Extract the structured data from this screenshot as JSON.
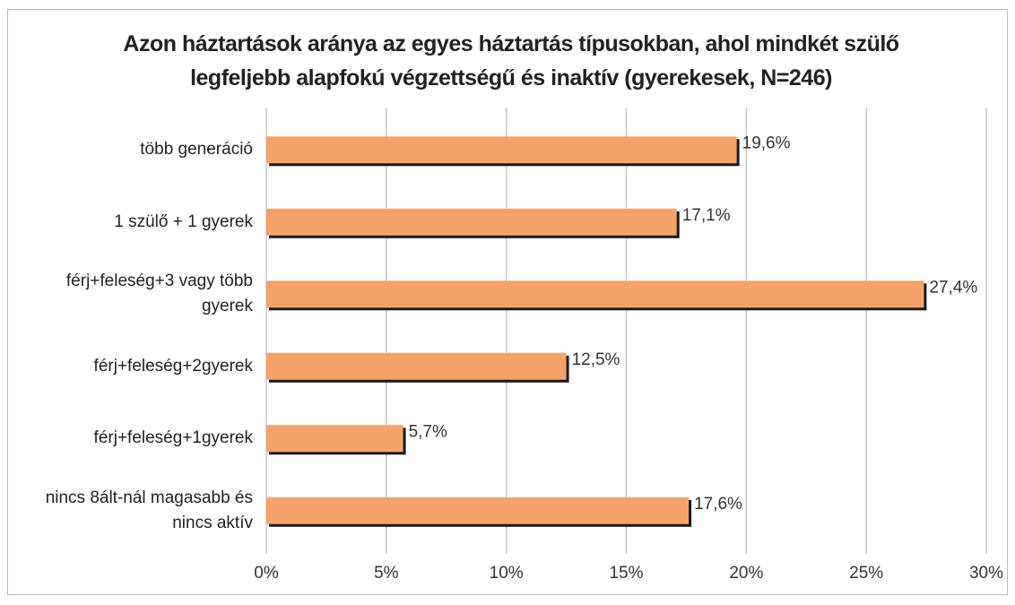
{
  "chart_data": {
    "type": "barh",
    "title": "Azon háztartások aránya az egyes háztartás típusokban, ahol mindkét szülő legfeljebb alapfokú végzettségű és inaktív (gyerekesek, N=246)",
    "categories": [
      "több generáció",
      "1 szülő + 1 gyerek",
      "férj+feleség+3 vagy több gyerek",
      "férj+feleség+2gyerek",
      "férj+feleség+1gyerek",
      "nincs 8ált-nál magasabb és nincs aktív"
    ],
    "values": [
      19.6,
      17.1,
      27.4,
      12.5,
      5.7,
      17.6
    ],
    "value_labels": [
      "19,6%",
      "17,1%",
      "27,4%",
      "12,5%",
      "5,7%",
      "17,6%"
    ],
    "color": "#f5a36b",
    "xlim": [
      0,
      30
    ],
    "xticks": [
      {
        "value": 0,
        "label": "0%"
      },
      {
        "value": 5,
        "label": "5%"
      },
      {
        "value": 10,
        "label": "10%"
      },
      {
        "value": 15,
        "label": "15%"
      },
      {
        "value": 20,
        "label": "20%"
      },
      {
        "value": 25,
        "label": "25%"
      },
      {
        "value": 30,
        "label": "30%"
      }
    ],
    "grid": true
  }
}
